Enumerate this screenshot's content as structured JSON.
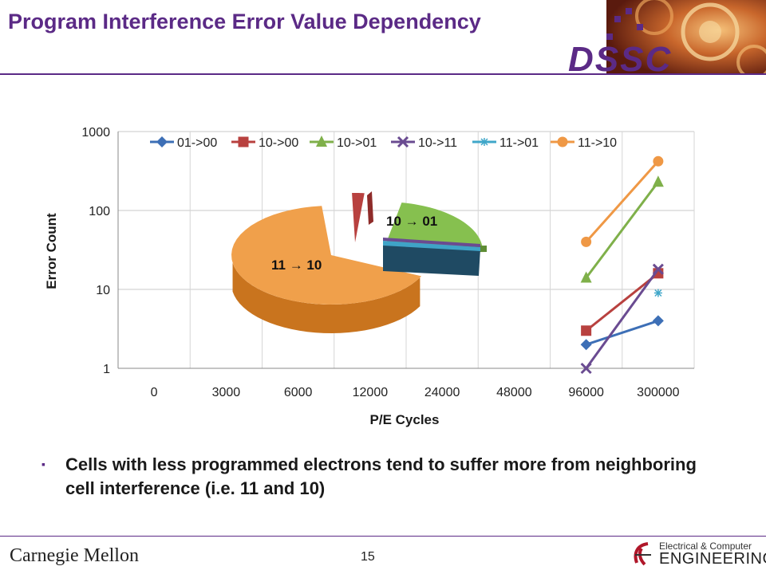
{
  "slide": {
    "title": "Program Interference Error Value Dependency",
    "bullet": "Cells with less programmed electrons tend to suffer more from neighboring cell interference (i.e. 11 and 10)",
    "bullet_marker": "▪",
    "page_number": "15",
    "footer_left": "Carnegie Mellon",
    "footer_right_small": "Electrical & Computer",
    "footer_right_big": "ENGINEERING",
    "logo_text": "DSSC",
    "colors": {
      "brand": "#5b2a86"
    }
  },
  "chart_data": {
    "type": "line",
    "yscale": "log",
    "ylim": [
      1,
      1000
    ],
    "yticks": [
      "1",
      "10",
      "100",
      "1000"
    ],
    "categories": [
      "0",
      "3000",
      "6000",
      "12000",
      "24000",
      "48000",
      "96000",
      "300000"
    ],
    "xlabel": "P/E Cycles",
    "ylabel": "Error Count",
    "legend_position": "top",
    "grid": true,
    "series": [
      {
        "name": "01->00",
        "color": "#3d6fb6",
        "marker": "diamond",
        "values": [
          null,
          null,
          null,
          null,
          null,
          null,
          2,
          4
        ]
      },
      {
        "name": "10->00",
        "color": "#b8413f",
        "marker": "square",
        "values": [
          null,
          null,
          null,
          null,
          null,
          null,
          3,
          16
        ]
      },
      {
        "name": "10->01",
        "color": "#7fb04a",
        "marker": "triangle",
        "values": [
          null,
          null,
          null,
          null,
          null,
          null,
          14,
          230
        ]
      },
      {
        "name": "10->11",
        "color": "#6a4b91",
        "marker": "x",
        "values": [
          null,
          null,
          null,
          null,
          null,
          null,
          1,
          18
        ]
      },
      {
        "name": "11->01",
        "color": "#40a7c9",
        "marker": "star",
        "values": [
          null,
          null,
          null,
          null,
          null,
          null,
          null,
          9
        ]
      },
      {
        "name": "11->10",
        "color": "#ef9845",
        "marker": "circle",
        "values": [
          null,
          null,
          null,
          null,
          null,
          null,
          40,
          420
        ]
      }
    ],
    "pie": {
      "labels": {
        "big": "11  → 10",
        "green": "10  → 01"
      }
    }
  }
}
